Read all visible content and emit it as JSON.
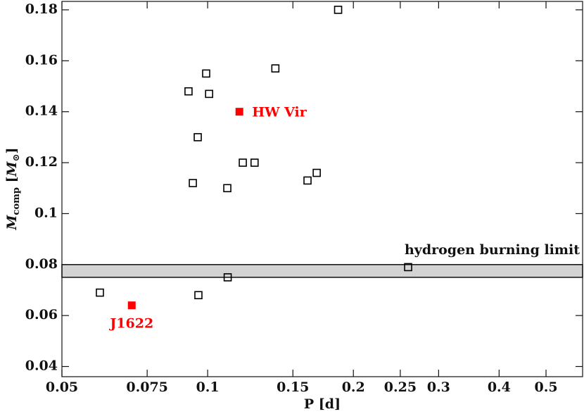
{
  "chart_data": {
    "type": "scatter",
    "x_label": "P [d]",
    "y_label": [
      "M",
      "comp",
      " [",
      "M",
      "⊙",
      "]"
    ],
    "xscale": "log",
    "xlim": [
      0.05,
      0.595
    ],
    "ylim": [
      0.036,
      0.1833
    ],
    "xticks": [
      0.05,
      0.075,
      0.1,
      0.15,
      0.2,
      0.25,
      0.3,
      0.4,
      0.5
    ],
    "yticks": [
      0.04,
      0.06,
      0.08,
      0.1,
      0.12,
      0.14,
      0.16,
      0.18
    ],
    "points": {
      "color": "#000000",
      "x": [
        0.186,
        0.138,
        0.0993,
        0.0913,
        0.1007,
        0.0954,
        0.1182,
        0.125,
        0.0932,
        0.1098,
        0.1608,
        0.168,
        0.2595,
        0.11,
        0.0599,
        0.0957
      ],
      "y": [
        0.18,
        0.157,
        0.155,
        0.148,
        0.147,
        0.13,
        0.12,
        0.12,
        0.112,
        0.11,
        0.113,
        0.116,
        0.079,
        0.075,
        0.069,
        0.068
      ]
    },
    "highlighted": [
      {
        "label": "HW Vir",
        "x": 0.1163,
        "y": 0.14,
        "color": "#ff0000"
      },
      {
        "label": "J1622",
        "x": 0.0697,
        "y": 0.064,
        "color": "#ff0000"
      }
    ],
    "band": {
      "label": "hydrogen burning limit",
      "range": [
        0.075,
        0.08
      ],
      "color": "#d3d3d3"
    }
  }
}
